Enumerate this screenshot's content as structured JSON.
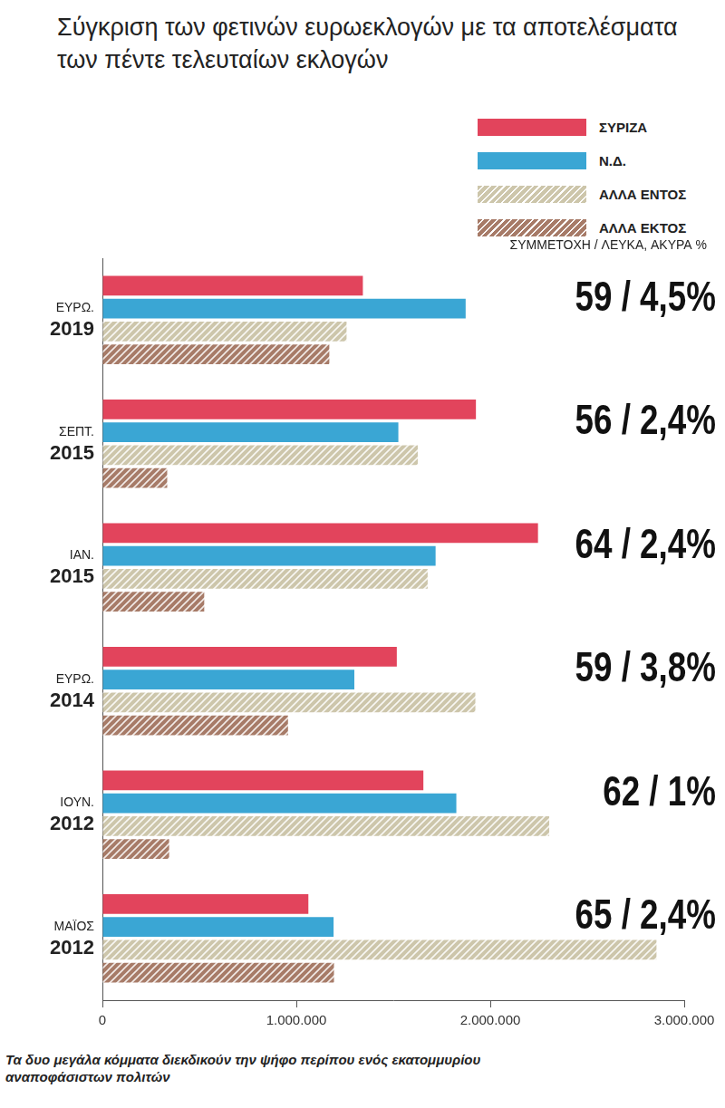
{
  "chart_data": {
    "type": "bar",
    "orientation": "horizontal",
    "title": "Σύγκριση των φετινών ευρωεκλογών με τα αποτελέσματα των πέντε τελευταίων εκλογών",
    "caption": "Τα δυο μεγάλα κόμματα διεκδικούν την ψήφο περίπου ενός εκατομμυρίου αναποφάσιστων πολιτών",
    "categories": [
      "ΕΥΡΩ. 2019",
      "ΣΕΠΤ. 2015",
      "ΙΑΝ. 2015",
      "ΕΥΡΩ. 2014",
      "ΙΟΥΝ. 2012",
      "ΜΑΪΟΣ 2012"
    ],
    "series": [
      {
        "name": "ΣΥΡΙΖΑ",
        "color": "#e2445c",
        "values": [
          1343000,
          1926000,
          2246000,
          1518000,
          1655000,
          1062000
        ]
      },
      {
        "name": "Ν.Δ.",
        "color": "#3aa6d4",
        "values": [
          1873000,
          1526000,
          1718000,
          1299000,
          1825000,
          1192000
        ]
      },
      {
        "name": "ΑΛΛΑ ΕΝΤΟΣ",
        "color": "#cdc6ab",
        "values": [
          1259000,
          1626000,
          1677000,
          1923000,
          2304000,
          2857000
        ]
      },
      {
        "name": "ΑΛΛΑ ΕΚΤΟΣ",
        "color": "#a77b68",
        "values": [
          1170000,
          334000,
          525000,
          957000,
          344000,
          1194000
        ]
      }
    ],
    "xlim": [
      0,
      3000000
    ],
    "xticks": [
      0,
      {
        "value": 1000000,
        "label": "1.000.000"
      },
      {
        "value": 2000000,
        "label": "2.000.000"
      },
      {
        "value": 3000000,
        "label": "3.000.000"
      }
    ],
    "grid": false,
    "legend": "top-right",
    "annotation_header": "ΣΥΜΜΕΤΟΧΗ / ΛΕΥΚΑ, ΑΚΥΡΑ %",
    "annotations": [
      "59 / 4,5%",
      "56 / 2,4%",
      "64 / 2,4%",
      "59 / 3,8%",
      "62 / 1%",
      "65 / 2,4%"
    ]
  }
}
